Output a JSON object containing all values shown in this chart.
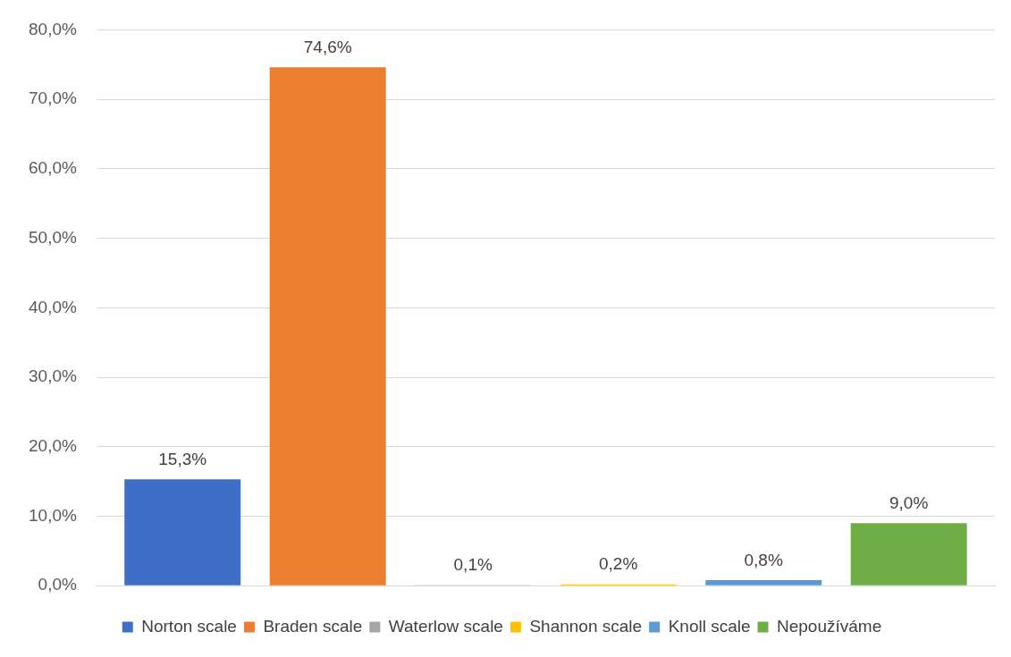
{
  "chart_data": {
    "type": "bar",
    "categories": [
      null
    ],
    "series": [
      {
        "name": "Norton scale",
        "color": "#3e6ec6",
        "values": [
          15.3
        ],
        "value_labels": [
          "15,3%"
        ]
      },
      {
        "name": "Braden scale",
        "color": "#ed7d31",
        "values": [
          74.6
        ],
        "value_labels": [
          "74,6%"
        ]
      },
      {
        "name": "Waterlow scale",
        "color": "#a5a5a5",
        "values": [
          0.1
        ],
        "value_labels": [
          "0,1%"
        ]
      },
      {
        "name": "Shannon scale",
        "color": "#ffc000",
        "values": [
          0.2
        ],
        "value_labels": [
          "0,2%"
        ]
      },
      {
        "name": "Knoll scale",
        "color": "#5b9bd5",
        "values": [
          0.8
        ],
        "value_labels": [
          "0,8%"
        ]
      },
      {
        "name": "Nepoužíváme",
        "color": "#70ad47",
        "values": [
          9.0
        ],
        "value_labels": [
          "9,0%"
        ]
      }
    ],
    "ylim": [
      0,
      80
    ],
    "yticks": [
      {
        "value": 0,
        "label": "0,0%"
      },
      {
        "value": 10,
        "label": "10,0%"
      },
      {
        "value": 20,
        "label": "20,0%"
      },
      {
        "value": 30,
        "label": "30,0%"
      },
      {
        "value": 40,
        "label": "40,0%"
      },
      {
        "value": 50,
        "label": "50,0%"
      },
      {
        "value": 60,
        "label": "60,0%"
      },
      {
        "value": 70,
        "label": "70,0%"
      },
      {
        "value": 80,
        "label": "80,0%"
      }
    ],
    "grid": "y",
    "legend": "bottom"
  }
}
